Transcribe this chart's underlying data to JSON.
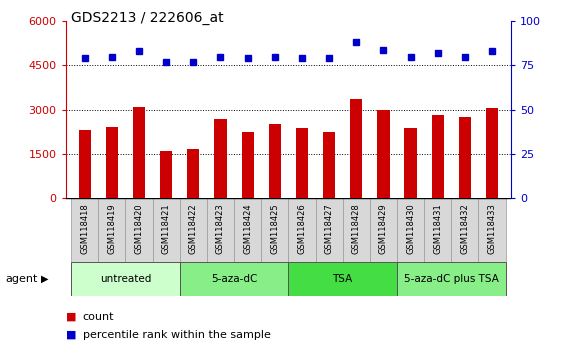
{
  "title": "GDS2213 / 222606_at",
  "samples": [
    "GSM118418",
    "GSM118419",
    "GSM118420",
    "GSM118421",
    "GSM118422",
    "GSM118423",
    "GSM118424",
    "GSM118425",
    "GSM118426",
    "GSM118427",
    "GSM118428",
    "GSM118429",
    "GSM118430",
    "GSM118431",
    "GSM118432",
    "GSM118433"
  ],
  "counts": [
    2300,
    2420,
    3080,
    1600,
    1680,
    2700,
    2250,
    2530,
    2380,
    2230,
    3350,
    3000,
    2380,
    2820,
    2750,
    3050
  ],
  "percentiles": [
    79,
    80,
    83,
    77,
    77,
    80,
    79,
    80,
    79,
    79,
    88,
    84,
    80,
    82,
    80,
    83
  ],
  "bar_color": "#cc0000",
  "dot_color": "#0000cc",
  "ylim_left": [
    0,
    6000
  ],
  "ylim_right": [
    0,
    100
  ],
  "yticks_left": [
    0,
    1500,
    3000,
    4500,
    6000
  ],
  "yticks_right": [
    0,
    25,
    50,
    75,
    100
  ],
  "groups": [
    {
      "label": "untreated",
      "start": 0,
      "end": 4,
      "color": "#ccffcc"
    },
    {
      "label": "5-aza-dC",
      "start": 4,
      "end": 8,
      "color": "#88ee88"
    },
    {
      "label": "TSA",
      "start": 8,
      "end": 12,
      "color": "#44dd44"
    },
    {
      "label": "5-aza-dC plus TSA",
      "start": 12,
      "end": 16,
      "color": "#88ee88"
    }
  ],
  "agent_label": "agent",
  "legend_count_label": "count",
  "legend_pct_label": "percentile rank within the sample",
  "tick_label_color_left": "#cc0000",
  "tick_label_color_right": "#0000cc"
}
